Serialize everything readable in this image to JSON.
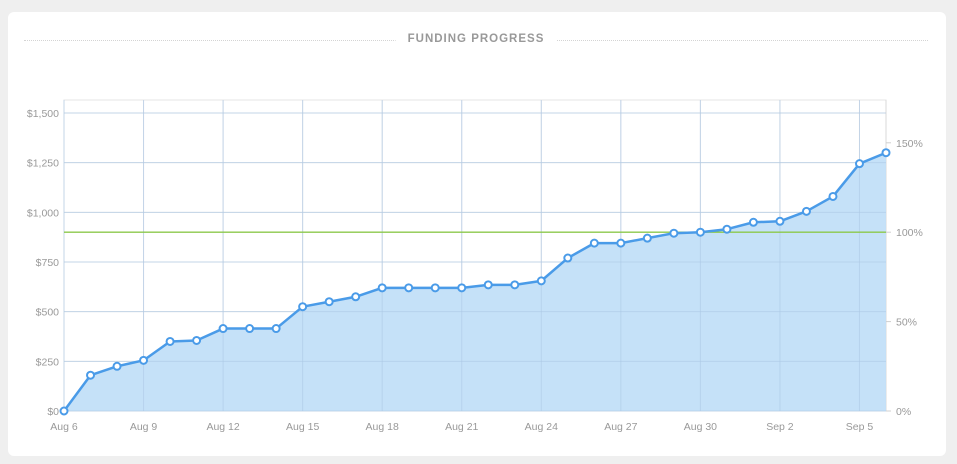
{
  "chart_data": {
    "type": "area",
    "title": "FUNDING PROGRESS",
    "x": [
      "Aug 6",
      "Aug 7",
      "Aug 8",
      "Aug 9",
      "Aug 10",
      "Aug 11",
      "Aug 12",
      "Aug 13",
      "Aug 14",
      "Aug 15",
      "Aug 16",
      "Aug 17",
      "Aug 18",
      "Aug 19",
      "Aug 20",
      "Aug 21",
      "Aug 22",
      "Aug 23",
      "Aug 24",
      "Aug 25",
      "Aug 26",
      "Aug 27",
      "Aug 28",
      "Aug 29",
      "Aug 30",
      "Aug 31",
      "Sep 1",
      "Sep 2",
      "Sep 3",
      "Sep 4",
      "Sep 5",
      "Sep 6"
    ],
    "values": [
      0,
      180,
      225,
      255,
      350,
      355,
      415,
      415,
      415,
      525,
      550,
      575,
      620,
      620,
      620,
      620,
      635,
      635,
      655,
      770,
      845,
      845,
      870,
      895,
      900,
      915,
      950,
      955,
      1005,
      1080,
      1245,
      1300
    ],
    "x_tick_labels": [
      "Aug 6",
      "Aug 9",
      "Aug 12",
      "Aug 15",
      "Aug 18",
      "Aug 21",
      "Aug 24",
      "Aug 27",
      "Aug 30",
      "Sep 2",
      "Sep 5"
    ],
    "y_tick_labels": [
      "$0",
      "$250",
      "$500",
      "$750",
      "$1,000",
      "$1,250",
      "$1,500"
    ],
    "y_ticks": [
      0,
      250,
      500,
      750,
      1000,
      1250,
      1500
    ],
    "y2_tick_labels": [
      "0%",
      "50%",
      "100%",
      "150%"
    ],
    "y2_ticks": [
      0,
      50,
      100,
      150
    ],
    "goal": 900,
    "ylim": [
      0,
      1500
    ],
    "grid": true,
    "colors": {
      "line": "#4a9be8",
      "fill": "#c2dff8",
      "goal": "#8cc84b",
      "grid": "#dde3ea"
    }
  }
}
